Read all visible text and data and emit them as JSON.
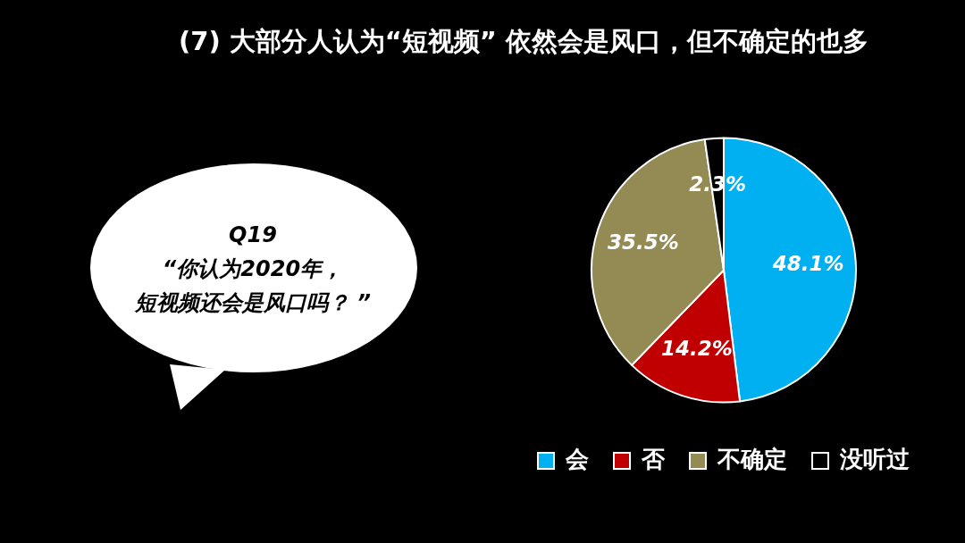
{
  "chart_data": {
    "type": "pie",
    "title": "(7) 大部分人认为“短视频” 依然会是风口，但不确定的也多",
    "categories": [
      "会",
      "否",
      "不确定",
      "没听过"
    ],
    "values": [
      48.1,
      14.2,
      35.5,
      2.3
    ],
    "colors": [
      "#00b0f0",
      "#c00000",
      "#948a54",
      "#000000"
    ],
    "value_labels": [
      "48.1%",
      "14.2%",
      "35.5%",
      "2.3%"
    ],
    "legend": "bottom",
    "annotations": [
      "Q19",
      "“你认为2020年，",
      "短视频还会是风口吗？ ”"
    ]
  }
}
